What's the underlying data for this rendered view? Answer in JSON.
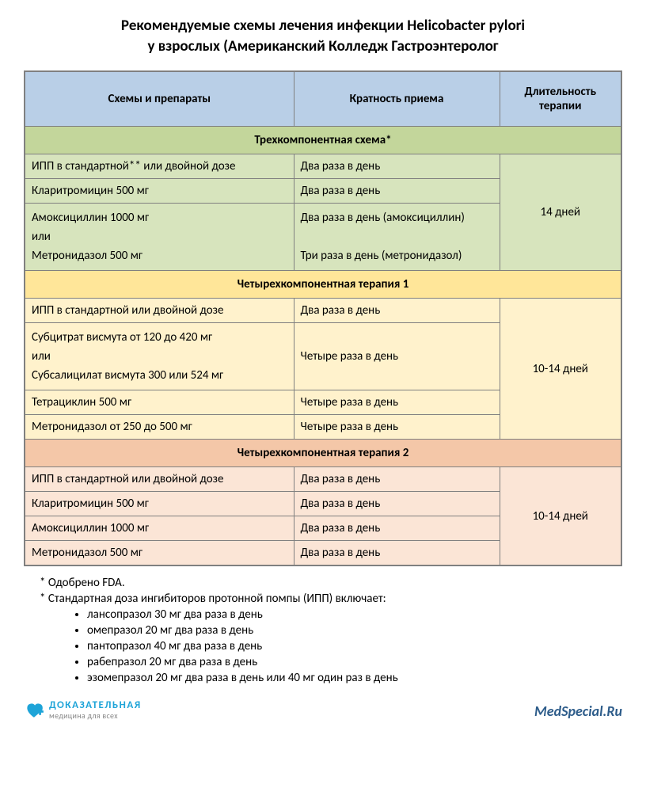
{
  "title_line1": "Рекомендуемые схемы лечения инфекции Helicobacter pylori",
  "title_line2": "у взрослых (Американский Колледж Гастроэнтеролог",
  "columns": [
    "Схемы и препараты",
    "Кратность приема",
    "Длительность терапии"
  ],
  "colors": {
    "header_bg": "#b9cfe7",
    "green_section": "#c3d69b",
    "green_row": "#d7e4bd",
    "yellow_section": "#ffe699",
    "yellow_row": "#fff2cc",
    "orange_section": "#f4c7a8",
    "orange_row": "#fbe5d6",
    "border": "#808080"
  },
  "sections": [
    {
      "heading": "Трехкомпонентная схема*",
      "theme": "green",
      "duration": "14 дней",
      "rows": [
        {
          "drug": "ИПП в стандартной** или двойной дозе",
          "freq": "Два раза в день"
        },
        {
          "drug": "Кларитромицин 500 мг",
          "freq": "Два раза в день"
        },
        {
          "drug_multi": [
            "Амоксициллин 1000 мг",
            "или",
            "Метронидазол 500 мг"
          ],
          "freq_multi": [
            "Два раза в день (амоксициллин)",
            "",
            "Три раза в день (метронидазол)"
          ]
        }
      ]
    },
    {
      "heading": "Четырехкомпонентная терапия 1",
      "theme": "yellow",
      "duration": "10-14 дней",
      "rows": [
        {
          "drug": "ИПП в стандартной или двойной дозе",
          "freq": "Два раза в день"
        },
        {
          "drug_multi": [
            "Субцитрат висмута от 120 до 420 мг",
            "или",
            "Субсалицилат висмута 300 или 524 мг"
          ],
          "freq": "Четыре раза в день"
        },
        {
          "drug": "Тетрациклин 500 мг",
          "freq": "Четыре раза в день"
        },
        {
          "drug": "Метронидазол от 250 до 500 мг",
          "freq": "Четыре раза в день"
        }
      ]
    },
    {
      "heading": "Четырехкомпонентная терапия 2",
      "theme": "orange",
      "duration": "10-14 дней",
      "rows": [
        {
          "drug": "ИПП в стандартной или двойной дозе",
          "freq": "Два раза в день"
        },
        {
          "drug": "Кларитромицин 500 мг",
          "freq": "Два раза в день"
        },
        {
          "drug": "Амоксициллин 1000 мг",
          "freq": "Два раза в день"
        },
        {
          "drug": "Метронидазол 500 мг",
          "freq": "Два раза в день"
        }
      ]
    }
  ],
  "notes": {
    "star1": "* Одобрено FDA.",
    "star2": "* Стандартная доза ингибиторов протонной помпы (ИПП) включает:",
    "items": [
      "лансопразол 30 мг два раза в день",
      "омепразол 20 мг два раза в день",
      "пантопразол 40 мг два раза в день",
      "рабепразол 20 мг два раза в день",
      "эзомепразол 20 мг два раза в день или 40 мг один раз в день"
    ]
  },
  "footer": {
    "logo_l1": "ДОКАЗАТЕЛЬНАЯ",
    "logo_l2": "медицина для всех",
    "site": "MedSpecial.Ru"
  }
}
